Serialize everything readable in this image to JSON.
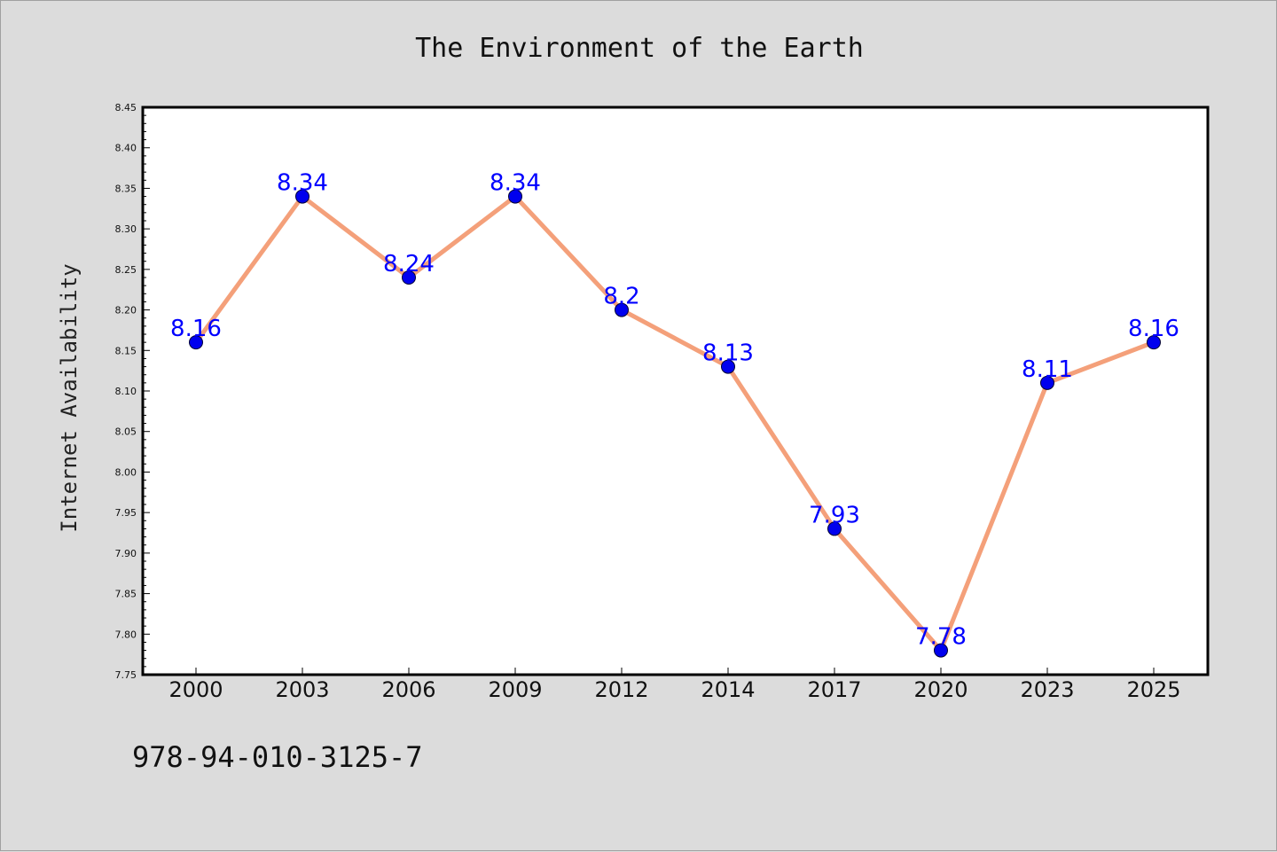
{
  "chart_data": {
    "type": "line",
    "title": "The Environment of the Earth",
    "xlabel": "",
    "ylabel": "Internet Availability",
    "categories": [
      "2000",
      "2003",
      "2006",
      "2009",
      "2012",
      "2014",
      "2017",
      "2020",
      "2023",
      "2025"
    ],
    "series": [
      {
        "values": [
          8.16,
          8.34,
          8.24,
          8.34,
          8.2,
          8.13,
          7.93,
          7.78,
          8.11,
          8.16
        ],
        "data_labels": [
          "8.16",
          "8.34",
          "8.24",
          "8.34",
          "8.2",
          "8.13",
          "7.93",
          "7.78",
          "8.11",
          "8.16"
        ],
        "line_color": "#f4a07a",
        "marker_color": "#0000ee",
        "label_color": "#0000ff"
      }
    ],
    "ylim": [
      7.75,
      8.45
    ],
    "yticks": [
      "7.75",
      "7.80",
      "7.85",
      "7.90",
      "7.95",
      "8.00",
      "8.05",
      "8.10",
      "8.15",
      "8.20",
      "8.25",
      "8.30",
      "8.35",
      "8.40",
      "8.45"
    ],
    "grid": false,
    "legend": "none"
  },
  "footer": {
    "text": "978-94-010-3125-7"
  },
  "colors": {
    "background": "#dcdcdc",
    "plot_background": "#ffffff",
    "axis": "#000000"
  }
}
